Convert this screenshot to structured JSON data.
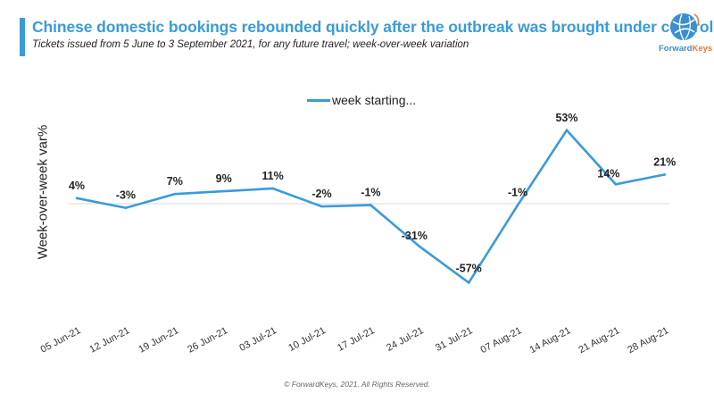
{
  "header": {
    "title": "Chinese domestic bookings rebounded quickly after the outbreak was brought under control",
    "subtitle": "Tickets issued from 5 June to 3 September 2021, for any future travel; week-over-week variation"
  },
  "logo": {
    "icon": "globe-icon",
    "text_part1": "Forward",
    "text_part2": "Keys"
  },
  "footer": {
    "text": "© ForwardKeys, 2021. All Rights Reserved."
  },
  "colors": {
    "accent": "#3a9bd9",
    "line": "#3a9bd9",
    "zero_line": "#d9d9d9"
  },
  "chart_data": {
    "type": "line",
    "title": "Chinese domestic bookings rebounded quickly after the outbreak was brought under control",
    "subtitle": "Tickets issued from 5 June to 3 September 2021, for any future travel; week-over-week variation",
    "xlabel": "",
    "ylabel": "Week-over-week var%",
    "categories": [
      "05 Jun-21",
      "12 Jun-21",
      "19 Jun-21",
      "26 Jun-21",
      "03 Jul-21",
      "10 Jul-21",
      "17 Jul-21",
      "24 Jul-21",
      "31 Jul-21",
      "07 Aug-21",
      "14 Aug-21",
      "21 Aug-21",
      "28 Aug-21"
    ],
    "series": [
      {
        "name": "week starting...",
        "values": [
          4,
          -3,
          7,
          9,
          11,
          -2,
          -1,
          -31,
          -57,
          -1,
          53,
          14,
          21
        ],
        "labels": [
          "4%",
          "-3%",
          "7%",
          "9%",
          "11%",
          "-2%",
          "-1%",
          "-31%",
          "-57%",
          "-1%",
          "53%",
          "14%",
          "21%"
        ]
      }
    ],
    "ylim": [
      -80,
      70
    ],
    "grid": false,
    "zero_line": true,
    "legend": {
      "position": "top-center",
      "label": "week starting..."
    }
  }
}
